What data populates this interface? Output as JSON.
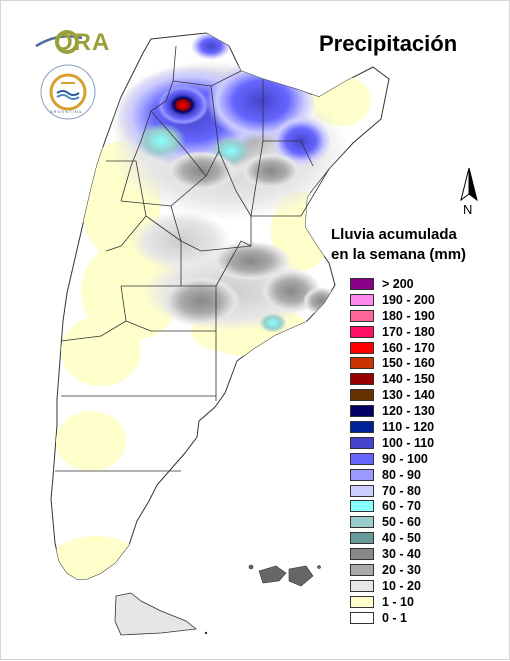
{
  "title": "Precipitación",
  "legend": {
    "title_line1": "Lluvia acumulada",
    "title_line2": "en la semana (mm)",
    "items": [
      {
        "label": "> 200",
        "color": "#8b008b"
      },
      {
        "label": "190 - 200",
        "color": "#ff88ee"
      },
      {
        "label": "180 - 190",
        "color": "#ff6699"
      },
      {
        "label": "170 - 180",
        "color": "#ff1166"
      },
      {
        "label": "160 - 170",
        "color": "#ff0000"
      },
      {
        "label": "150 - 160",
        "color": "#cc3300"
      },
      {
        "label": "140 - 150",
        "color": "#990000"
      },
      {
        "label": "130 - 140",
        "color": "#663300"
      },
      {
        "label": "120 - 130",
        "color": "#000066"
      },
      {
        "label": "110 - 120",
        "color": "#002299"
      },
      {
        "label": "100 - 110",
        "color": "#4444cc"
      },
      {
        "label": "90 - 100",
        "color": "#6666ff"
      },
      {
        "label": "80 - 90",
        "color": "#9999ff"
      },
      {
        "label": "70 - 80",
        "color": "#ccccff"
      },
      {
        "label": "60 - 70",
        "color": "#88ffff"
      },
      {
        "label": "50 - 60",
        "color": "#99cccc"
      },
      {
        "label": "40 - 50",
        "color": "#669999"
      },
      {
        "label": "30 - 40",
        "color": "#888888"
      },
      {
        "label": "20 - 30",
        "color": "#aaaaaa"
      },
      {
        "label": "10 - 20",
        "color": "#e6e6e6"
      },
      {
        "label": "1 - 10",
        "color": "#ffffcc"
      },
      {
        "label": "0 - 1",
        "color": "#ffffff"
      }
    ]
  },
  "north_arrow": {
    "label": "N",
    "icon": "north-arrow-icon"
  },
  "logos": {
    "ora": {
      "text": "ORA",
      "icon": "ora-logo-icon",
      "color": "#9aa03a"
    },
    "seal": {
      "icon": "institutional-seal-icon",
      "text": "ARGENTINA"
    }
  },
  "map": {
    "region": "Argentina",
    "style": "weekly accumulated rainfall choropleth"
  }
}
